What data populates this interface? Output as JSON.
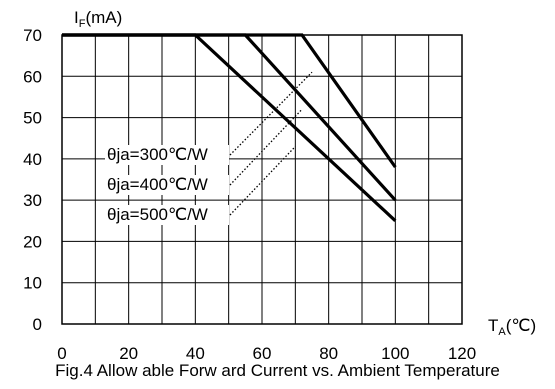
{
  "chart_data": {
    "type": "line",
    "caption": "Fig.4 Allow able Forw ard Current vs. Ambient Temperature",
    "y_axis": {
      "symbol": "I",
      "subscript": "F",
      "unit": "(mA)",
      "range": [
        0,
        70
      ],
      "ticks": [
        0,
        10,
        20,
        30,
        40,
        50,
        60,
        70
      ]
    },
    "x_axis": {
      "symbol": "T",
      "subscript": "A",
      "unit": "(℃)",
      "range": [
        0,
        120
      ],
      "ticks": [
        0,
        20,
        40,
        60,
        80,
        100,
        120
      ]
    },
    "grid": true,
    "grid_x_step": 10,
    "grid_y_step": 10,
    "series": [
      {
        "name": "θja=300℃/W",
        "points": [
          [
            0,
            70
          ],
          [
            72,
            70
          ],
          [
            100,
            38
          ]
        ],
        "label_anchor": [
          75,
          61
        ]
      },
      {
        "name": "θja=400℃/W",
        "points": [
          [
            0,
            70
          ],
          [
            55,
            70
          ],
          [
            100,
            30
          ]
        ],
        "label_anchor": [
          72,
          52
        ]
      },
      {
        "name": "θja=500℃/W",
        "points": [
          [
            0,
            70
          ],
          [
            40,
            70
          ],
          [
            100,
            25
          ]
        ],
        "label_anchor": [
          70,
          43
        ]
      }
    ]
  }
}
